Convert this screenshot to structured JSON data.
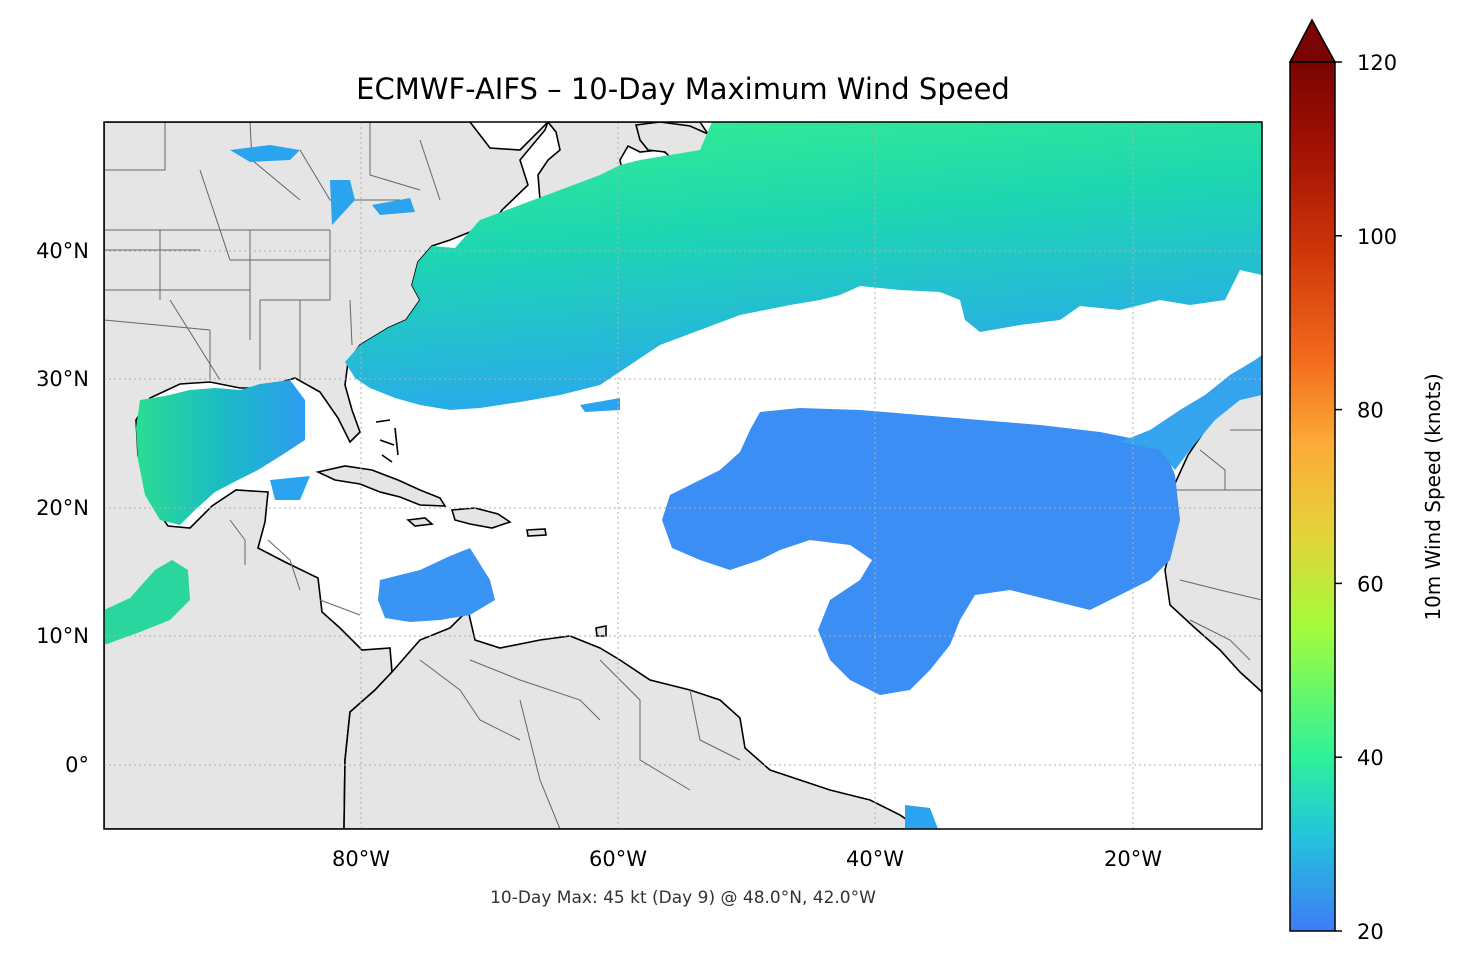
{
  "title": "ECMWF-AIFS – 10-Day Maximum Wind Speed",
  "subtitle": "10-Day Max: 45 kt (Day 9) @ 48.0°N, 42.0°W",
  "colorbar": {
    "label": "10m Wind Speed (knots)",
    "ticks": [
      "20",
      "40",
      "60",
      "80",
      "100",
      "120"
    ],
    "min": 20,
    "max": 120,
    "extend": "max",
    "colormap": [
      "#3e7cf5",
      "#23c4dc",
      "#2ef29a",
      "#a4fc3b",
      "#e6d13a",
      "#fcab38",
      "#f26a1c",
      "#cf3709",
      "#a21104",
      "#7a0403"
    ]
  },
  "axes": {
    "lon_range": [
      -100,
      -10
    ],
    "lat_range": [
      -5,
      50
    ],
    "x_tick_labels": [
      "80°W",
      "60°W",
      "40°W",
      "20°W"
    ],
    "y_tick_labels": [
      "40°N",
      "30°N",
      "20°N",
      "10°N",
      "0°"
    ],
    "gridlines": true
  },
  "colors": {
    "land": "#e5e5e5",
    "ocean": "#ffffff",
    "coast": "#000000",
    "borders": "#666666"
  },
  "chart_data": {
    "type": "heatmap",
    "variable": "10m Wind Speed (knots)",
    "max_value_kt": 45,
    "max_day": 9,
    "max_location": {
      "lat": 48.0,
      "lon": -42.0
    }
  }
}
